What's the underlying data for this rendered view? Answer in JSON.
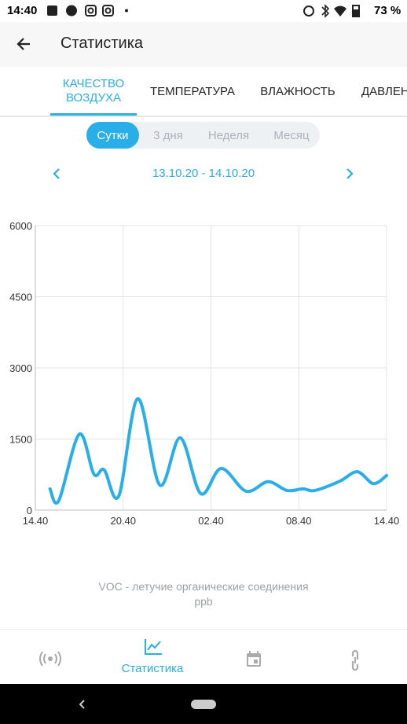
{
  "status_bar": {
    "time": "14:40",
    "battery": "73 %"
  },
  "app_bar": {
    "title": "Статистика"
  },
  "tabs": [
    "КАЧЕСТВО ВОЗДУХА",
    "ТЕМПЕРАТУРА",
    "ВЛАЖНОСТЬ",
    "ДАВЛЕНИЕ"
  ],
  "periods": [
    "Сутки",
    "3 дня",
    "Неделя",
    "Месяц"
  ],
  "date_range": "13.10.20 - 14.10.20",
  "chart_data": {
    "type": "line",
    "x": [
      1.0,
      1.6,
      3.0,
      4.0,
      4.7,
      5.7,
      7.0,
      8.5,
      9.9,
      11.3,
      12.7,
      14.4,
      15.9,
      17.2,
      18.3,
      19.1,
      20.8,
      22.0,
      23.1,
      24.0
    ],
    "series": [
      {
        "color": "#29aee8",
        "values": [
          450,
          200,
          1600,
          760,
          850,
          300,
          2350,
          530,
          1525,
          350,
          880,
          400,
          600,
          415,
          450,
          415,
          610,
          810,
          560,
          730
        ]
      }
    ],
    "xlim": [
      0,
      24
    ],
    "xticks": [
      {
        "value": 0,
        "label": "14.40"
      },
      {
        "value": 6,
        "label": "20.40"
      },
      {
        "value": 12,
        "label": "02.40"
      },
      {
        "value": 18,
        "label": "08.40"
      },
      {
        "value": 24,
        "label": "14.40"
      }
    ],
    "ylim": [
      0,
      6000
    ],
    "yticks": [
      0,
      1500,
      3000,
      4500,
      6000
    ],
    "grid": true
  },
  "caption": [
    "VOC - летучие органические соединения",
    "ppb"
  ],
  "nav": {
    "active_label": "Статистика"
  }
}
